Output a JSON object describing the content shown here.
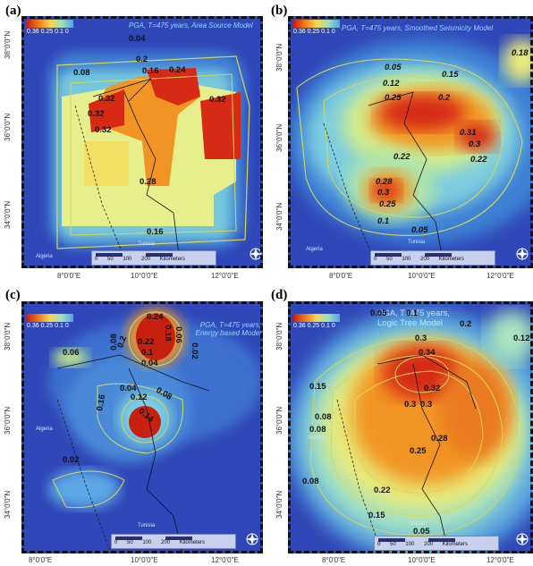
{
  "title_unit": "PGA, T=475 years",
  "panels": [
    {
      "label": "(a)",
      "model": "PGA, T=475 years, Area Source Model",
      "legend_values": "0.36 0.25 0.1 0",
      "contours": [
        "0.04",
        "0.08",
        "0.2",
        "0.16",
        "0.24",
        "0.32",
        "0.32",
        "0.32",
        "0.32",
        "0.28",
        "0.16"
      ],
      "country_1": "Algeria",
      "country_2": "Tunisia",
      "scale": "0 50 100 200 Kilometers",
      "lat_labels": [
        "38°0'0\"N",
        "36°0'0\"N",
        "34°0'0\"N"
      ]
    },
    {
      "label": "(b)",
      "model": "PGA, T=475 years, Smoothed Seismicity Model",
      "legend_values": "0.36 0.25 0.1 0",
      "contours": [
        "0.05",
        "0.15",
        "0.18",
        "0.12",
        "0.25",
        "0.2",
        "0.31",
        "0.3",
        "0.22",
        "0.22",
        "0.28",
        "0.3",
        "0.25",
        "0.1",
        "0.05"
      ],
      "country_1": "Algeria",
      "country_2": "Tunisia",
      "scale": "0 50 100 200 Kilometers",
      "lat_labels": [
        "38°0'0\"N",
        "36°0'0\"N",
        "34°0'0\"N"
      ],
      "lon_labels": [
        "8°0'0\"E",
        "10°0'0\"E",
        "12°0'0\"E"
      ]
    },
    {
      "label": "(c)",
      "model": "PGA, T=475 years, Energy based Model",
      "legend_values": "0.36 0.25 0.1 0",
      "contours": [
        "0.24",
        "0.08",
        "0.2",
        "0.22",
        "0.18",
        "0.06",
        "0.1",
        "0.06",
        "0.04",
        "0.02",
        "0.04",
        "0.12",
        "0.08",
        "0.16",
        "0.14",
        "0.02"
      ],
      "country_1": "Algeria",
      "country_2": "Tunisia",
      "scale": "0 50 100 200 Kilometers",
      "lon_labels": [
        "8°0'0\"E",
        "10°0'0\"E",
        "12°0'0\"E"
      ]
    },
    {
      "label": "(d)",
      "model": "PGA, T=475 years, Logic Tree Model",
      "legend_values": "0.36 0.25 0.1 0",
      "contours": [
        "0.05",
        "0.1",
        "0.2",
        "0.12",
        "0.3",
        "0.34",
        "0.15",
        "0.32",
        "0.3",
        "0.3",
        "0.08",
        "0.08",
        "0.28",
        "0.25",
        "0.08",
        "0.22",
        "0.15",
        "0.05"
      ],
      "country_1": "Algeria",
      "country_2": "Tunisia",
      "scale": "0 50 100 200 Kilometers",
      "lat_labels": [
        "38°0'0\"N",
        "36°0'0\"N",
        "34°0'0\"N"
      ],
      "lon_labels": [
        "8°0'0\"E",
        "10°0'0\"E",
        "12°0'0\"E"
      ]
    }
  ],
  "bottom_lon_left": [
    "8°0'0\"E",
    "10°0'0\"E",
    "12°0'0\"E"
  ],
  "top_lon_left": [
    "8°0'0\"E",
    "10°0'0\"E",
    "12°0'0\"E"
  ],
  "colors": {
    "ocean": "#2f47b8",
    "red": "#d62a14",
    "orange": "#f29424",
    "yellow": "#f1e064",
    "cyan": "#8fd9d0"
  }
}
